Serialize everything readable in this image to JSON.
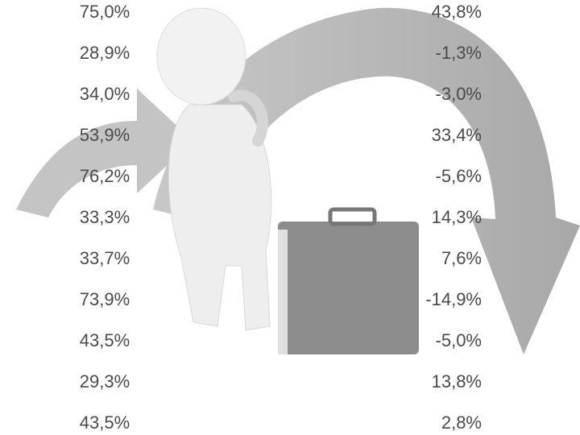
{
  "table": {
    "rows": [
      [
        "75,0%",
        "43,8%"
      ],
      [
        "28,9%",
        "-1,3%"
      ],
      [
        "34,0%",
        "-3,0%"
      ],
      [
        "53,9%",
        "33,4%"
      ],
      [
        "76,2%",
        "-5,6%"
      ],
      [
        "33,3%",
        "14,3%"
      ],
      [
        "33,7%",
        "7,6%"
      ],
      [
        "73,9%",
        "-14,9%"
      ],
      [
        "43,5%",
        "-5,0%"
      ],
      [
        "29,3%",
        "13,8%"
      ],
      [
        "43,5%",
        "2,8%"
      ]
    ]
  }
}
